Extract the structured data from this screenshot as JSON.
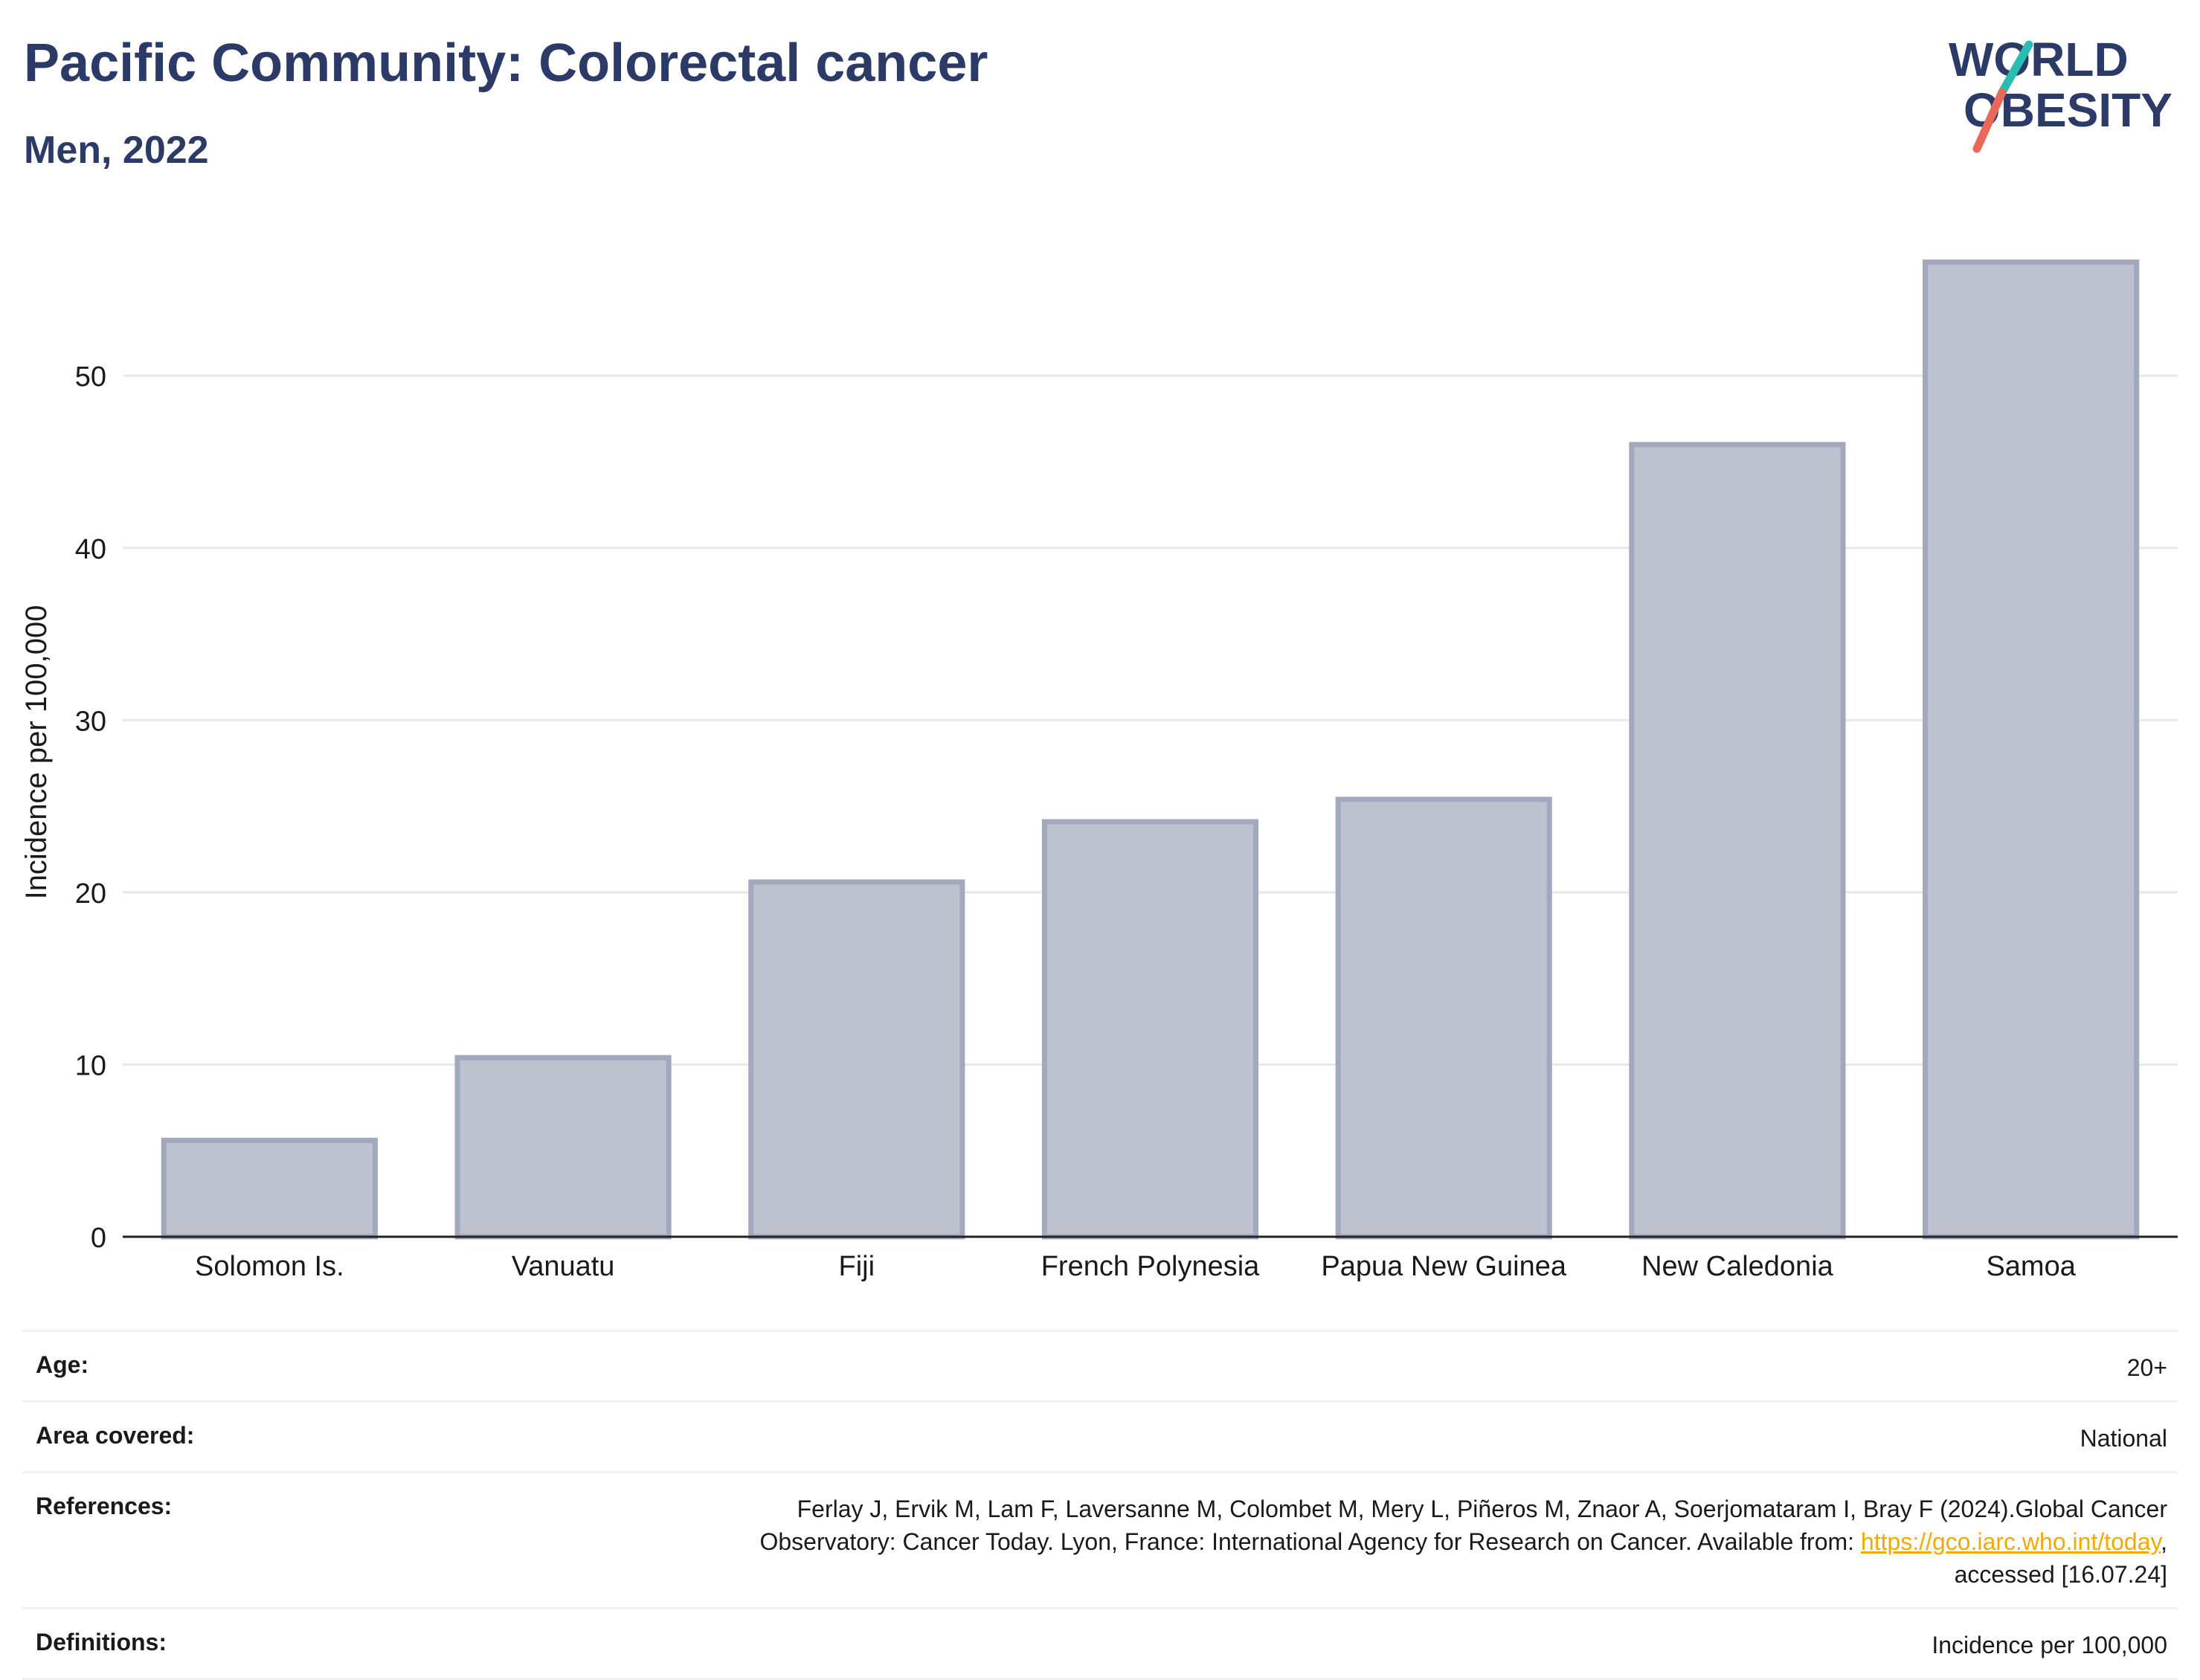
{
  "header": {
    "title": "Pacific Community: Colorectal cancer",
    "subtitle": "Men, 2022"
  },
  "logo": {
    "line1": "WORLD",
    "line2": "OBESITY",
    "accent_teal": "#2bbcb0",
    "accent_coral": "#e8685a",
    "text_color": "#2b3a67"
  },
  "chart_data": {
    "type": "bar",
    "categories": [
      "Solomon Is.",
      "Vanuatu",
      "Fiji",
      "French Polynesia",
      "Papua New Guinea",
      "New Caledonia",
      "Samoa"
    ],
    "values": [
      5.6,
      10.4,
      20.6,
      24.1,
      25.4,
      46.0,
      56.6
    ],
    "title": "",
    "xlabel": "",
    "ylabel": "Incidence per 100,000",
    "ylim": [
      0,
      58
    ],
    "yticks": [
      0,
      10,
      20,
      30,
      40,
      50
    ],
    "grid": true,
    "bar_fill": "#bec2cf",
    "bar_stroke": "#a2a8bd"
  },
  "meta": {
    "age_label": "Age:",
    "age_value": "20+",
    "area_label": "Area covered:",
    "area_value": "National",
    "references_label": "References:",
    "references_line1": "Ferlay J, Ervik M, Lam F, Laversanne M, Colombet M, Mery L, Piñeros M, Znaor A, Soerjomataram I, Bray F (2024).Global Cancer",
    "references_line2": "Observatory: Cancer Today. Lyon, France: International Agency for Research on Cancer. Available from: ",
    "references_link": "https://gco.iarc.who.int/today",
    "references_comma": ",",
    "references_line3": "accessed [16.07.24]",
    "definitions_label": "Definitions:",
    "definitions_value": "Incidence per 100,000"
  }
}
